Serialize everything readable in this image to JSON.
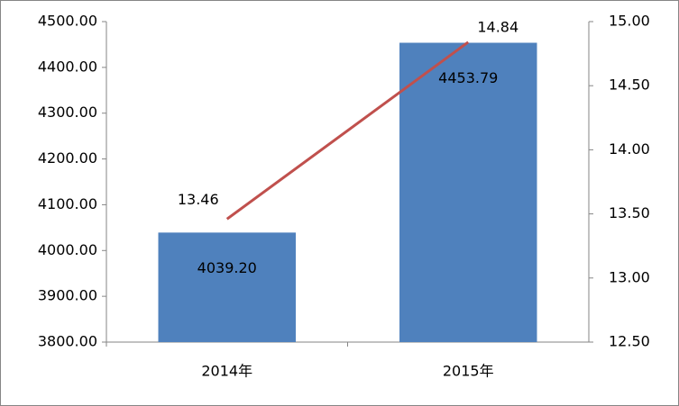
{
  "chart_data": {
    "type": "combo",
    "categories": [
      "2014年",
      "2015年"
    ],
    "series": [
      {
        "type": "bar",
        "color": "#4f81bd",
        "values": [
          4039.2,
          4453.79
        ],
        "value_labels": [
          "4039.20",
          "4453.79"
        ]
      },
      {
        "type": "line",
        "color": "#c0504d",
        "axis": "y2",
        "values": [
          13.46,
          14.84
        ]
      }
    ],
    "ylim": [
      3800,
      4500
    ],
    "yticks": [
      {
        "value": 3800,
        "label": "3800.00"
      },
      {
        "value": 3900,
        "label": "3900.00"
      },
      {
        "value": 4000,
        "label": "4000.00"
      },
      {
        "value": 4100,
        "label": "4100.00"
      },
      {
        "value": 4200,
        "label": "4200.00"
      },
      {
        "value": 4300,
        "label": "4300.00"
      },
      {
        "value": 4400,
        "label": "4400.00"
      },
      {
        "value": 4500,
        "label": "4500.00"
      }
    ],
    "y2lim": [
      12.5,
      15
    ],
    "y2ticks": [
      {
        "value": 12.5,
        "label": "12.50"
      },
      {
        "value": 13,
        "label": "13.00"
      },
      {
        "value": 13.5,
        "label": "13.50"
      },
      {
        "value": 14,
        "label": "14.00"
      },
      {
        "value": 14.5,
        "label": "14.50"
      },
      {
        "value": 15,
        "label": "15.00"
      }
    ],
    "grid": false
  }
}
